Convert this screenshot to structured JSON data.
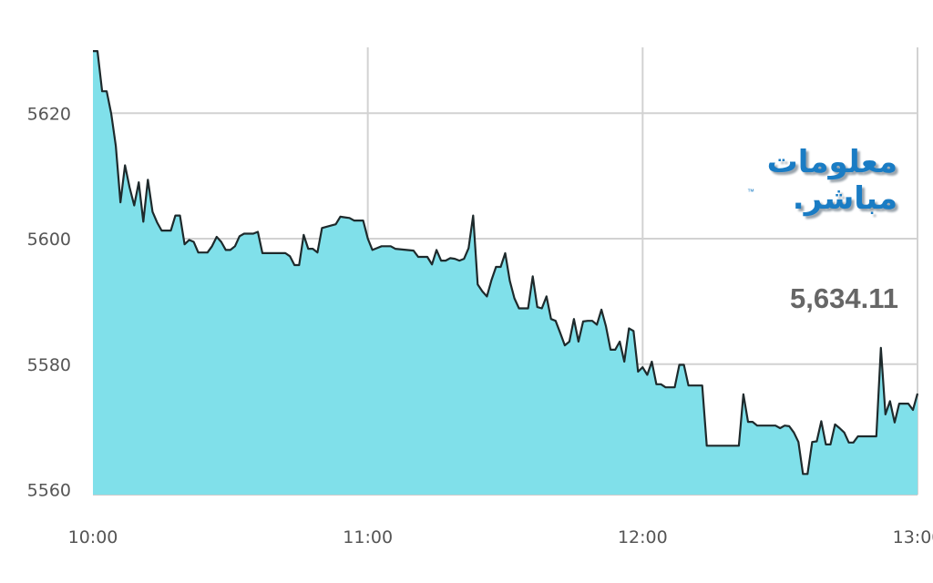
{
  "chart_data": {
    "type": "area",
    "title": "",
    "xlabel": "",
    "ylabel": "",
    "ylim": [
      5559.2,
      5630.5
    ],
    "xlim": [
      "10:00",
      "13:00"
    ],
    "grid": true,
    "x_ticks": [
      "10:00",
      "11:00",
      "12:00",
      "13:00"
    ],
    "y_ticks": [
      5560,
      5580,
      5600,
      5620
    ],
    "colors": {
      "fill": "#80e0ea",
      "line": "#1e2a2c",
      "grid": "#d2d2d2"
    },
    "points": [
      [
        "10:00",
        5629.9
      ],
      [
        "10:01",
        5629.9
      ],
      [
        "10:02",
        5623.5
      ],
      [
        "10:03",
        5623.5
      ],
      [
        "10:04",
        5619.9
      ],
      [
        "10:05",
        5614.8
      ],
      [
        "10:06",
        5605.8
      ],
      [
        "10:07",
        5611.7
      ],
      [
        "10:08",
        5608.2
      ],
      [
        "10:09",
        5605.3
      ],
      [
        "10:10",
        5609.0
      ],
      [
        "10:11",
        5602.7
      ],
      [
        "10:12",
        5609.4
      ],
      [
        "10:13",
        5604.3
      ],
      [
        "10:14",
        5602.6
      ],
      [
        "10:15",
        5601.3
      ],
      [
        "10:17",
        5601.3
      ],
      [
        "10:18",
        5603.7
      ],
      [
        "10:19",
        5603.7
      ],
      [
        "10:20",
        5599.1
      ],
      [
        "10:21",
        5599.8
      ],
      [
        "10:22",
        5599.5
      ],
      [
        "10:23",
        5597.8
      ],
      [
        "10:25",
        5597.8
      ],
      [
        "10:26",
        5598.8
      ],
      [
        "10:27",
        5600.3
      ],
      [
        "10:28",
        5599.5
      ],
      [
        "10:29",
        5598.2
      ],
      [
        "10:30",
        5598.2
      ],
      [
        "10:31",
        5598.8
      ],
      [
        "10:32",
        5600.4
      ],
      [
        "10:33",
        5600.8
      ],
      [
        "10:35",
        5600.8
      ],
      [
        "10:36",
        5601.1
      ],
      [
        "10:37",
        5597.7
      ],
      [
        "10:42",
        5597.7
      ],
      [
        "10:43",
        5597.2
      ],
      [
        "10:44",
        5595.8
      ],
      [
        "10:45",
        5595.8
      ],
      [
        "10:46",
        5600.6
      ],
      [
        "10:47",
        5598.4
      ],
      [
        "10:48",
        5598.4
      ],
      [
        "10:49",
        5597.8
      ],
      [
        "10:50",
        5601.7
      ],
      [
        "10:52",
        5602.1
      ],
      [
        "10:53",
        5602.3
      ],
      [
        "10:54",
        5603.5
      ],
      [
        "10:56",
        5603.3
      ],
      [
        "10:57",
        5602.9
      ],
      [
        "10:59",
        5602.9
      ],
      [
        "11:00",
        5600.0
      ],
      [
        "11:01",
        5598.2
      ],
      [
        "11:02",
        5598.5
      ],
      [
        "11:03",
        5598.8
      ],
      [
        "11:05",
        5598.8
      ],
      [
        "11:06",
        5598.4
      ],
      [
        "11:10",
        5598.1
      ],
      [
        "11:11",
        5597.1
      ],
      [
        "11:13",
        5597.1
      ],
      [
        "11:14",
        5595.9
      ],
      [
        "11:15",
        5598.2
      ],
      [
        "11:16",
        5596.5
      ],
      [
        "11:17",
        5596.5
      ],
      [
        "11:18",
        5596.9
      ],
      [
        "11:19",
        5596.8
      ],
      [
        "11:20",
        5596.5
      ],
      [
        "11:21",
        5596.8
      ],
      [
        "11:22",
        5598.5
      ],
      [
        "11:23",
        5603.7
      ],
      [
        "11:24",
        5592.7
      ],
      [
        "11:25",
        5591.6
      ],
      [
        "11:26",
        5590.8
      ],
      [
        "11:27",
        5593.4
      ],
      [
        "11:28",
        5595.5
      ],
      [
        "11:29",
        5595.5
      ],
      [
        "11:30",
        5597.7
      ],
      [
        "11:31",
        5593.3
      ],
      [
        "11:32",
        5590.5
      ],
      [
        "11:33",
        5588.9
      ],
      [
        "11:35",
        5588.9
      ],
      [
        "11:36",
        5594.0
      ],
      [
        "11:37",
        5589.1
      ],
      [
        "11:38",
        5588.9
      ],
      [
        "11:39",
        5590.8
      ],
      [
        "11:40",
        5587.2
      ],
      [
        "11:41",
        5586.9
      ],
      [
        "11:42",
        5585.0
      ],
      [
        "11:43",
        5583.0
      ],
      [
        "11:44",
        5583.6
      ],
      [
        "11:45",
        5587.2
      ],
      [
        "11:46",
        5583.6
      ],
      [
        "11:47",
        5586.8
      ],
      [
        "11:48",
        5586.9
      ],
      [
        "11:49",
        5586.9
      ],
      [
        "11:50",
        5586.3
      ],
      [
        "11:51",
        5588.7
      ],
      [
        "11:52",
        5586.0
      ],
      [
        "11:53",
        5582.3
      ],
      [
        "11:54",
        5582.3
      ],
      [
        "11:55",
        5583.6
      ],
      [
        "11:56",
        5580.4
      ],
      [
        "11:57",
        5585.7
      ],
      [
        "11:58",
        5585.3
      ],
      [
        "11:59",
        5578.8
      ],
      [
        "12:00",
        5579.5
      ],
      [
        "12:01",
        5578.3
      ],
      [
        "12:02",
        5580.4
      ],
      [
        "12:03",
        5576.8
      ],
      [
        "12:04",
        5576.8
      ],
      [
        "12:05",
        5576.3
      ],
      [
        "12:07",
        5576.3
      ],
      [
        "12:08",
        5579.9
      ],
      [
        "12:09",
        5579.9
      ],
      [
        "12:10",
        5576.6
      ],
      [
        "12:12",
        5576.6
      ],
      [
        "12:13",
        5576.6
      ],
      [
        "12:14",
        5567.0
      ],
      [
        "12:21",
        5567.0
      ],
      [
        "12:22",
        5575.2
      ],
      [
        "12:23",
        5570.8
      ],
      [
        "12:24",
        5570.8
      ],
      [
        "12:25",
        5570.2
      ],
      [
        "12:29",
        5570.2
      ],
      [
        "12:30",
        5569.8
      ],
      [
        "12:31",
        5570.2
      ],
      [
        "12:32",
        5570.1
      ],
      [
        "12:33",
        5569.1
      ],
      [
        "12:34",
        5567.6
      ],
      [
        "12:35",
        5562.5
      ],
      [
        "12:36",
        5562.5
      ],
      [
        "12:37",
        5567.6
      ],
      [
        "12:38",
        5567.7
      ],
      [
        "12:39",
        5570.9
      ],
      [
        "12:40",
        5567.2
      ],
      [
        "12:41",
        5567.2
      ],
      [
        "12:42",
        5570.4
      ],
      [
        "12:43",
        5569.8
      ],
      [
        "12:44",
        5569.1
      ],
      [
        "12:45",
        5567.5
      ],
      [
        "12:46",
        5567.5
      ],
      [
        "12:47",
        5568.5
      ],
      [
        "12:51",
        5568.5
      ],
      [
        "12:52",
        5582.6
      ],
      [
        "12:53",
        5572.0
      ],
      [
        "12:54",
        5574.1
      ],
      [
        "12:55",
        5570.7
      ],
      [
        "12:56",
        5573.7
      ],
      [
        "12:58",
        5573.7
      ],
      [
        "12:59",
        5572.7
      ],
      [
        "13:00",
        5575.3
      ]
    ]
  },
  "logo": {
    "text_line1": "معلومات",
    "text_line2": "مباشر.",
    "trademark": "™"
  },
  "current_value": "5,634.11"
}
